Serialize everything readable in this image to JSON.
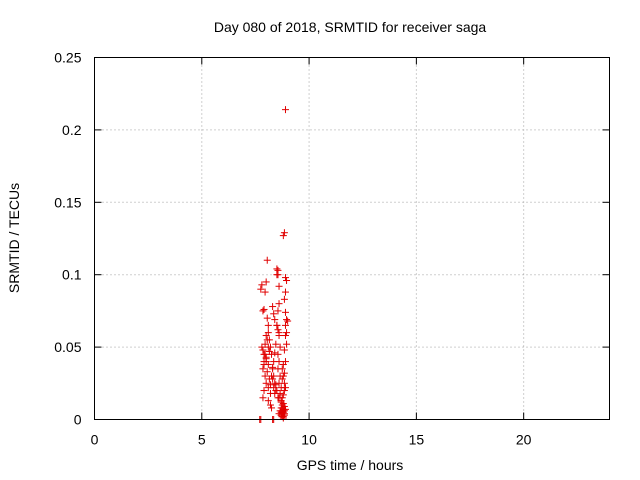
{
  "chart_data": {
    "type": "scatter",
    "title": "Day 080 of 2018, SRMTID for receiver saga",
    "xlabel": "GPS time / hours",
    "ylabel": "SRMTID / TECUs",
    "xlim": [
      0,
      24
    ],
    "ylim": [
      0,
      0.25
    ],
    "x_ticks": [
      0,
      5,
      10,
      15,
      20
    ],
    "y_ticks": [
      0,
      0.05,
      0.1,
      0.15,
      0.2,
      0.25
    ],
    "x_tick_labels": [
      "0",
      "5",
      "10",
      "15",
      "20"
    ],
    "y_tick_labels": [
      "0",
      "0.05",
      "0.1",
      "0.15",
      "0.2",
      "0.25"
    ],
    "grid": true,
    "marker": "+",
    "color": "#e00000",
    "series": [
      {
        "x": [
          7.75,
          7.8,
          7.85,
          7.9,
          7.95,
          7.8,
          7.85,
          7.9,
          8.0,
          7.9,
          7.85,
          7.95,
          8.0,
          7.9,
          7.85,
          8.05,
          8.0,
          7.95,
          8.05,
          8.1,
          8.0,
          8.05,
          8.1,
          8.15,
          8.0,
          8.1,
          8.05,
          8.15,
          8.1,
          8.2,
          8.1,
          8.2,
          8.25,
          8.1,
          8.15,
          8.2,
          8.25,
          8.3,
          8.35,
          8.4,
          8.45,
          8.5,
          8.55,
          8.6,
          8.55,
          8.5,
          8.6,
          8.65,
          8.55,
          8.6,
          8.55,
          8.65,
          8.6,
          8.7,
          8.65,
          8.6,
          8.7,
          8.75,
          8.7,
          8.65,
          8.7,
          8.6,
          8.7,
          8.75,
          8.8,
          8.75,
          8.7,
          8.8,
          8.85,
          8.8,
          8.75,
          8.8,
          8.85,
          8.9,
          8.85,
          8.8,
          8.9,
          8.95,
          8.9,
          8.85,
          8.9,
          8.95,
          9.0,
          8.9,
          8.95,
          8.9,
          8.95,
          8.85,
          8.9,
          8.8,
          8.75,
          8.85,
          8.8,
          8.75,
          8.85,
          8.9,
          8.85,
          8.8,
          8.75,
          8.7,
          8.8,
          8.85,
          8.9,
          8.8,
          8.75,
          8.85,
          8.6,
          8.55,
          8.5,
          8.45,
          8.4,
          8.35,
          8.3,
          8.25,
          8.2,
          8.45,
          8.5,
          8.55,
          8.4,
          8.35,
          8.3,
          8.0,
          7.95,
          7.9,
          8.4,
          8.35,
          8.3,
          8.6,
          8.5,
          8.55,
          7.7,
          7.75,
          8.3,
          8.35
        ],
        "y": [
          0.09,
          0.093,
          0.075,
          0.076,
          0.052,
          0.05,
          0.048,
          0.045,
          0.042,
          0.04,
          0.035,
          0.03,
          0.025,
          0.02,
          0.015,
          0.11,
          0.095,
          0.088,
          0.07,
          0.065,
          0.058,
          0.055,
          0.05,
          0.047,
          0.043,
          0.038,
          0.033,
          0.028,
          0.022,
          0.018,
          0.013,
          0.01,
          0.008,
          0.06,
          0.055,
          0.05,
          0.045,
          0.035,
          0.03,
          0.025,
          0.02,
          0.104,
          0.1,
          0.08,
          0.075,
          0.065,
          0.06,
          0.05,
          0.045,
          0.04,
          0.035,
          0.03,
          0.025,
          0.022,
          0.018,
          0.015,
          0.012,
          0.01,
          0.008,
          0.006,
          0.005,
          0.004,
          0.003,
          0.002,
          0.001,
          0.004,
          0.003,
          0.005,
          0.006,
          0.007,
          0.008,
          0.002,
          0.003,
          0.214,
          0.129,
          0.127,
          0.098,
          0.096,
          0.088,
          0.083,
          0.074,
          0.069,
          0.068,
          0.065,
          0.06,
          0.058,
          0.052,
          0.048,
          0.04,
          0.038,
          0.035,
          0.032,
          0.03,
          0.028,
          0.025,
          0.022,
          0.02,
          0.017,
          0.015,
          0.013,
          0.011,
          0.009,
          0.007,
          0.006,
          0.005,
          0.004,
          0.058,
          0.062,
          0.065,
          0.052,
          0.046,
          0.04,
          0.036,
          0.03,
          0.024,
          0.024,
          0.02,
          0.015,
          0.018,
          0.022,
          0.028,
          0.04,
          0.045,
          0.038,
          0.069,
          0.073,
          0.078,
          0.092,
          0.1,
          0.103,
          0.0,
          0.0,
          0.0,
          0.0
        ]
      }
    ]
  }
}
